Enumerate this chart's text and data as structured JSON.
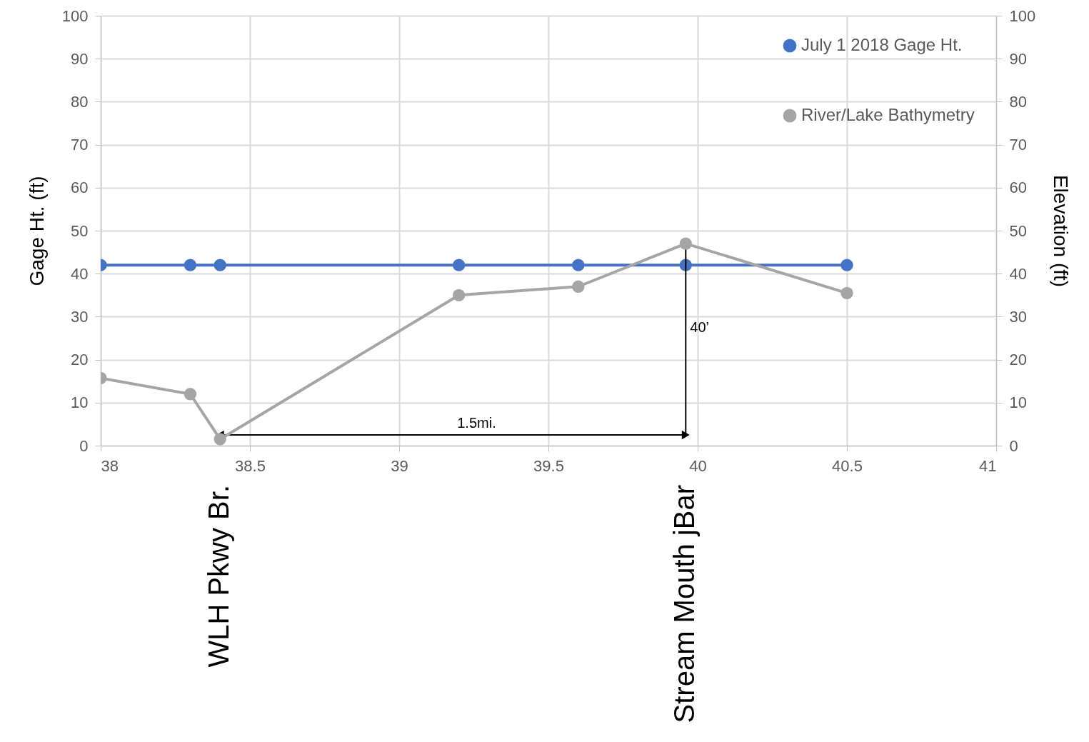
{
  "chart_data": {
    "type": "line",
    "ylabel": "Gage Ht. (ft)",
    "y2label": "Elevation (ft)",
    "series": [
      {
        "name": "July 1 2018 Gage Ht.",
        "color": "#4472c4",
        "x": [
          38,
          38.3,
          38.4,
          39.2,
          39.6,
          39.96,
          40.5
        ],
        "values": [
          42,
          42,
          42,
          42,
          42,
          42,
          42
        ]
      },
      {
        "name": "River/Lake Bathymetry",
        "color": "#a5a5a5",
        "axis": "y2",
        "x": [
          38,
          38.3,
          38.4,
          39.2,
          39.6,
          39.96,
          40.5
        ],
        "values": [
          15.7,
          12,
          1.5,
          35,
          37,
          47,
          35.5
        ]
      }
    ],
    "xlim": [
      38,
      41
    ],
    "xticks": [
      38,
      38.5,
      39,
      39.5,
      40,
      40.5,
      41
    ],
    "ylim": [
      0,
      100
    ],
    "yticks": [
      0,
      10,
      20,
      30,
      40,
      50,
      60,
      70,
      80,
      90,
      100
    ],
    "y2lim": [
      0,
      100
    ],
    "y2ticks": [
      0,
      10,
      20,
      30,
      40,
      50,
      60,
      70,
      80,
      90,
      100
    ],
    "annotations": [
      "1.5mi.",
      "40’",
      "WLH Pkwy Br.",
      "Stream Mouth jBar"
    ],
    "grid": true,
    "legend": "top right",
    "marker": "circle",
    "line_style": "solid"
  }
}
